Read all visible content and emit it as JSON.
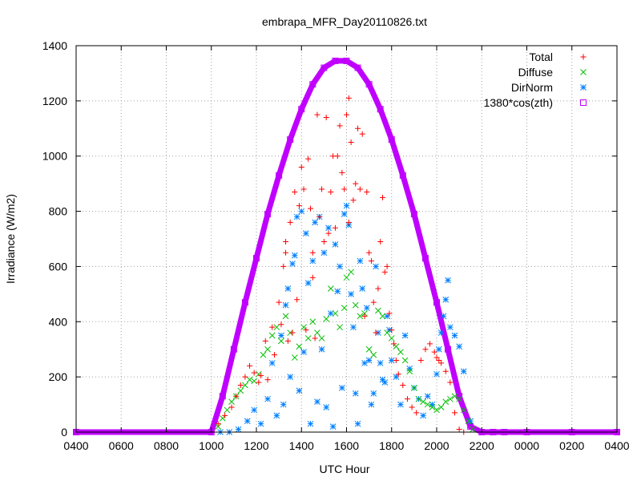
{
  "chart_data": {
    "type": "scatter",
    "title": "embrapa_MFR_Day20110826.txt",
    "xlabel": "UTC Hour",
    "ylabel": "Irradiance (W/m2)",
    "xlim": [
      4,
      28
    ],
    "ylim": [
      0,
      1400
    ],
    "x_tick_values": [
      4,
      6,
      8,
      10,
      12,
      14,
      16,
      18,
      20,
      22,
      24,
      26,
      28
    ],
    "x_tick_labels": [
      "0400",
      "0600",
      "0800",
      "1000",
      "1200",
      "1400",
      "1600",
      "1800",
      "2000",
      "2200",
      "0000",
      "0200",
      "0400"
    ],
    "y_tick_values": [
      0,
      200,
      400,
      600,
      800,
      1000,
      1200,
      1400
    ],
    "y_tick_labels": [
      "0",
      "200",
      "400",
      "600",
      "800",
      "1000",
      "1200",
      "1400"
    ],
    "grid": true,
    "legend_position": "top-right",
    "colors": {
      "Total": "#ff0000",
      "Diffuse": "#00c000",
      "DirNorm": "#0080ff",
      "1380*cos(zth)": "#c000ff"
    },
    "series": [
      {
        "name": "Total",
        "marker": "plus",
        "x": [
          10.3,
          10.6,
          10.9,
          11.1,
          11.3,
          11.5,
          11.7,
          11.9,
          12.1,
          12.2,
          12.4,
          12.5,
          12.7,
          12.8,
          13.0,
          13.1,
          13.2,
          13.3,
          13.3,
          13.4,
          13.5,
          13.6,
          13.7,
          13.8,
          13.9,
          14.0,
          14.1,
          14.2,
          14.3,
          14.4,
          14.5,
          14.5,
          14.6,
          14.7,
          14.8,
          14.9,
          15.0,
          15.1,
          15.2,
          15.3,
          15.4,
          15.5,
          15.6,
          15.7,
          15.8,
          15.9,
          16.0,
          16.1,
          16.1,
          16.2,
          16.3,
          16.4,
          16.5,
          16.6,
          16.7,
          16.8,
          16.9,
          17.0,
          17.1,
          17.2,
          17.3,
          17.4,
          17.5,
          17.6,
          17.7,
          17.8,
          17.9,
          18.0,
          18.1,
          18.2,
          18.3,
          18.5,
          18.7,
          18.9,
          19.1,
          19.3,
          19.5,
          19.7,
          19.9,
          20.0,
          20.1,
          20.2,
          20.4,
          20.6,
          20.8,
          21.0,
          21.2
        ],
        "y": [
          30,
          60,
          90,
          130,
          170,
          200,
          240,
          215,
          180,
          205,
          330,
          190,
          380,
          280,
          470,
          390,
          600,
          650,
          690,
          330,
          760,
          360,
          870,
          480,
          820,
          960,
          880,
          370,
          990,
          810,
          560,
          650,
          340,
          1150,
          780,
          880,
          690,
          1140,
          720,
          870,
          1000,
          740,
          1000,
          1110,
          940,
          880,
          1150,
          1210,
          760,
          1050,
          840,
          900,
          1100,
          880,
          1080,
          420,
          870,
          650,
          620,
          470,
          360,
          520,
          690,
          850,
          580,
          600,
          430,
          370,
          320,
          260,
          210,
          170,
          120,
          90,
          70,
          260,
          300,
          320,
          290,
          270,
          260,
          250,
          220,
          180,
          70,
          10,
          0
        ]
      },
      {
        "name": "Diffuse",
        "marker": "cross",
        "x": [
          10.3,
          10.5,
          10.7,
          10.9,
          11.1,
          11.3,
          11.5,
          11.7,
          11.9,
          12.1,
          12.3,
          12.5,
          12.7,
          12.9,
          13.1,
          13.3,
          13.5,
          13.7,
          13.9,
          14.1,
          14.3,
          14.5,
          14.7,
          14.9,
          15.1,
          15.3,
          15.5,
          15.7,
          15.9,
          16.0,
          16.2,
          16.4,
          16.6,
          16.8,
          17.0,
          17.2,
          17.4,
          17.6,
          17.8,
          18.0,
          18.2,
          18.4,
          18.6,
          18.8,
          19.0,
          19.2,
          19.4,
          19.6,
          19.8,
          20.0,
          20.2,
          20.4,
          20.6,
          20.8,
          21.0,
          21.2,
          21.4,
          21.6
        ],
        "y": [
          20,
          50,
          80,
          110,
          130,
          150,
          170,
          190,
          185,
          210,
          280,
          300,
          350,
          380,
          330,
          420,
          360,
          270,
          310,
          380,
          340,
          400,
          360,
          340,
          410,
          520,
          430,
          380,
          450,
          560,
          580,
          460,
          420,
          430,
          300,
          280,
          440,
          420,
          360,
          340,
          310,
          290,
          260,
          220,
          160,
          120,
          110,
          100,
          90,
          80,
          90,
          110,
          120,
          130,
          120,
          80,
          40,
          10
        ]
      },
      {
        "name": "DirNorm",
        "marker": "star",
        "x": [
          10.4,
          10.8,
          11.2,
          11.6,
          11.9,
          12.2,
          12.5,
          12.7,
          12.9,
          13.1,
          13.2,
          13.3,
          13.4,
          13.5,
          13.6,
          13.7,
          13.8,
          13.9,
          14.0,
          14.1,
          14.2,
          14.3,
          14.4,
          14.5,
          14.6,
          14.7,
          14.8,
          14.9,
          15.0,
          15.1,
          15.2,
          15.3,
          15.4,
          15.5,
          15.6,
          15.7,
          15.8,
          15.9,
          16.0,
          16.1,
          16.2,
          16.3,
          16.4,
          16.5,
          16.6,
          16.7,
          16.8,
          16.9,
          17.0,
          17.1,
          17.2,
          17.3,
          17.4,
          17.5,
          17.6,
          17.7,
          17.8,
          17.9,
          18.0,
          18.2,
          18.4,
          18.6,
          18.8,
          19.0,
          19.2,
          19.4,
          19.6,
          19.8,
          20.0,
          20.1,
          20.2,
          20.3,
          20.4,
          20.5,
          20.6,
          20.8,
          21.0,
          21.2,
          21.5
        ],
        "y": [
          0,
          0,
          10,
          40,
          80,
          30,
          120,
          250,
          60,
          350,
          100,
          460,
          520,
          200,
          610,
          640,
          780,
          150,
          800,
          290,
          720,
          540,
          30,
          620,
          760,
          110,
          780,
          300,
          650,
          90,
          740,
          430,
          20,
          680,
          510,
          600,
          160,
          790,
          820,
          750,
          500,
          380,
          140,
          30,
          620,
          520,
          250,
          450,
          260,
          100,
          140,
          600,
          360,
          250,
          190,
          180,
          420,
          370,
          260,
          200,
          100,
          350,
          230,
          160,
          120,
          60,
          130,
          100,
          210,
          300,
          360,
          420,
          480,
          550,
          380,
          350,
          310,
          220,
          40
        ]
      },
      {
        "name": "1380*cos(zth)",
        "marker": "square",
        "x": [
          4,
          10,
          10.5,
          11,
          11.5,
          12,
          12.5,
          13,
          13.5,
          14,
          14.5,
          15,
          15.5,
          16,
          16.5,
          17,
          17.5,
          18,
          18.5,
          19,
          19.5,
          20,
          20.5,
          21,
          21.5,
          22,
          22.5,
          23,
          24,
          26,
          28
        ],
        "y": [
          0,
          0,
          130,
          300,
          470,
          630,
          790,
          930,
          1060,
          1170,
          1260,
          1320,
          1345,
          1345,
          1320,
          1260,
          1170,
          1060,
          930,
          790,
          630,
          470,
          300,
          130,
          20,
          0,
          0,
          0,
          0,
          0,
          0
        ]
      }
    ]
  }
}
